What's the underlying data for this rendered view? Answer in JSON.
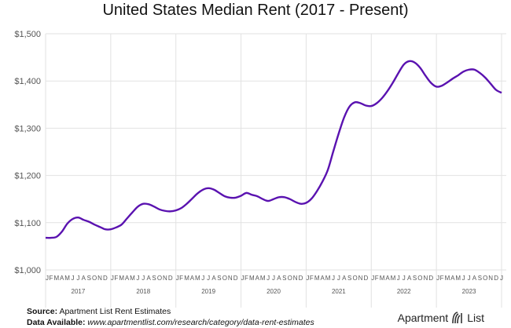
{
  "chart_data": {
    "type": "line",
    "title": "United States Median Rent (2017 - Present)",
    "xlabel": "",
    "ylabel": "",
    "ylim": [
      1000,
      1500
    ],
    "yticks": [
      "$1,000",
      "$1,100",
      "$1,200",
      "$1,300",
      "$1,400",
      "$1,500"
    ],
    "ytick_values": [
      1000,
      1100,
      1200,
      1300,
      1400,
      1500
    ],
    "grid": true,
    "line_color": "#5a12b0",
    "month_labels": [
      "J",
      "F",
      "M",
      "A",
      "M",
      "J",
      "J",
      "A",
      "S",
      "O",
      "N",
      "D"
    ],
    "years": [
      "2017",
      "2018",
      "2019",
      "2020",
      "2021",
      "2022",
      "2023"
    ],
    "final_month_label": "J",
    "x_start": "2017-01",
    "x_end": "2024-01",
    "values": [
      1068,
      1068,
      1070,
      1081,
      1098,
      1108,
      1111,
      1106,
      1102,
      1096,
      1091,
      1086,
      1086,
      1090,
      1096,
      1109,
      1122,
      1134,
      1140,
      1139,
      1134,
      1128,
      1125,
      1124,
      1126,
      1131,
      1140,
      1151,
      1162,
      1170,
      1173,
      1170,
      1163,
      1156,
      1153,
      1153,
      1157,
      1163,
      1159,
      1156,
      1150,
      1146,
      1150,
      1154,
      1154,
      1150,
      1144,
      1140,
      1142,
      1151,
      1167,
      1187,
      1212,
      1251,
      1289,
      1323,
      1346,
      1355,
      1353,
      1348,
      1347,
      1353,
      1364,
      1379,
      1397,
      1417,
      1435,
      1442,
      1439,
      1428,
      1411,
      1396,
      1388,
      1390,
      1397,
      1405,
      1412,
      1420,
      1424,
      1424,
      1417,
      1407,
      1394,
      1381,
      1375
    ]
  },
  "footer": {
    "source_label": "Source:",
    "source_text": "Apartment List Rent Estimates",
    "data_label": "Data Available:",
    "data_url": "www.apartmentlist.com/research/category/data-rent-estimates"
  },
  "logo": {
    "left": "Apartment",
    "right": "List"
  }
}
